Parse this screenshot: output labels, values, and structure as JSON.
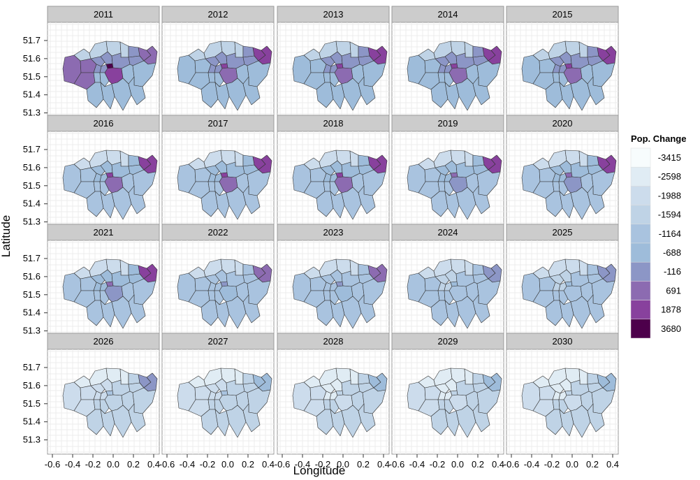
{
  "chart_data": {
    "type": "heatmap",
    "subtype": "faceted-choropleth",
    "title": "",
    "xlabel": "Longitude",
    "ylabel": "Latitude",
    "x_ticks": [
      "-0.6",
      "-0.4",
      "-0.2",
      "0.0",
      "0.2",
      "0.4"
    ],
    "y_ticks": [
      "51.7",
      "51.6",
      "51.5",
      "51.4",
      "51.3"
    ],
    "xlim": [
      -0.6,
      0.4
    ],
    "ylim": [
      51.25,
      51.72
    ],
    "grid": true,
    "facets": [
      "2011",
      "2012",
      "2013",
      "2014",
      "2015",
      "2016",
      "2017",
      "2018",
      "2019",
      "2020",
      "2021",
      "2022",
      "2023",
      "2024",
      "2025",
      "2026",
      "2027",
      "2028",
      "2029",
      "2030"
    ],
    "legend": {
      "title": "Pop. Change",
      "position": "right",
      "breaks": [
        "-3415",
        "-2598",
        "-1988",
        "-1594",
        "-1164",
        "-688",
        "-116",
        "691",
        "1878",
        "3680"
      ],
      "colors": [
        "#f7fcfd",
        "#e0ecf4",
        "#ccdcec",
        "#bfd3e6",
        "#a9c3df",
        "#9ebcda",
        "#8c96c6",
        "#8c6bb1",
        "#88419d",
        "#4d004b"
      ]
    },
    "east_level_by_year": [
      7,
      8,
      8,
      8,
      8,
      8,
      8,
      8,
      8,
      8,
      8,
      7,
      7,
      6,
      6,
      6,
      5,
      5,
      5,
      5
    ],
    "centre_level_by_year": [
      9,
      8,
      8,
      8,
      8,
      8,
      8,
      8,
      7,
      7,
      7,
      6,
      6,
      5,
      5,
      4,
      4,
      3,
      3,
      3
    ]
  }
}
